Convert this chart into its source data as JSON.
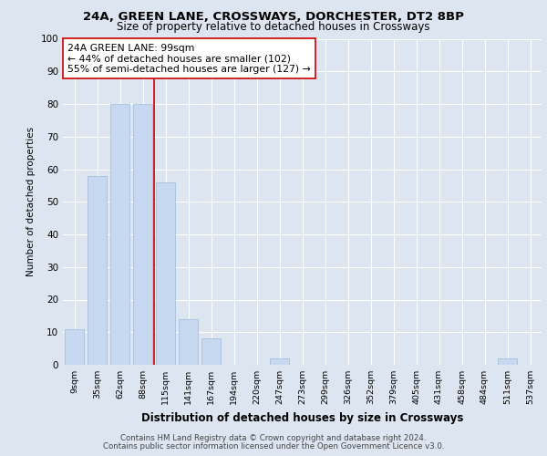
{
  "title1": "24A, GREEN LANE, CROSSWAYS, DORCHESTER, DT2 8BP",
  "title2": "Size of property relative to detached houses in Crossways",
  "xlabel": "Distribution of detached houses by size in Crossways",
  "ylabel": "Number of detached properties",
  "categories": [
    "9sqm",
    "35sqm",
    "62sqm",
    "88sqm",
    "115sqm",
    "141sqm",
    "167sqm",
    "194sqm",
    "220sqm",
    "247sqm",
    "273sqm",
    "299sqm",
    "326sqm",
    "352sqm",
    "379sqm",
    "405sqm",
    "431sqm",
    "458sqm",
    "484sqm",
    "511sqm",
    "537sqm"
  ],
  "values": [
    11,
    58,
    80,
    80,
    56,
    14,
    8,
    0,
    0,
    2,
    0,
    0,
    0,
    0,
    0,
    0,
    0,
    0,
    0,
    2,
    0
  ],
  "bar_color": "#c6d9f0",
  "bar_edge_color": "#a0b8d8",
  "vline_x": 3.5,
  "vline_color": "#cc0000",
  "annotation_text": "24A GREEN LANE: 99sqm\n← 44% of detached houses are smaller (102)\n55% of semi-detached houses are larger (127) →",
  "annotation_box_color": "#ffffff",
  "annotation_box_edge": "#cc0000",
  "ylim": [
    0,
    100
  ],
  "yticks": [
    0,
    10,
    20,
    30,
    40,
    50,
    60,
    70,
    80,
    90,
    100
  ],
  "footer1": "Contains HM Land Registry data © Crown copyright and database right 2024.",
  "footer2": "Contains public sector information licensed under the Open Government Licence v3.0.",
  "bg_color": "#dde5f0",
  "plot_bg": "#dde5f0",
  "grid_color": "#ffffff"
}
